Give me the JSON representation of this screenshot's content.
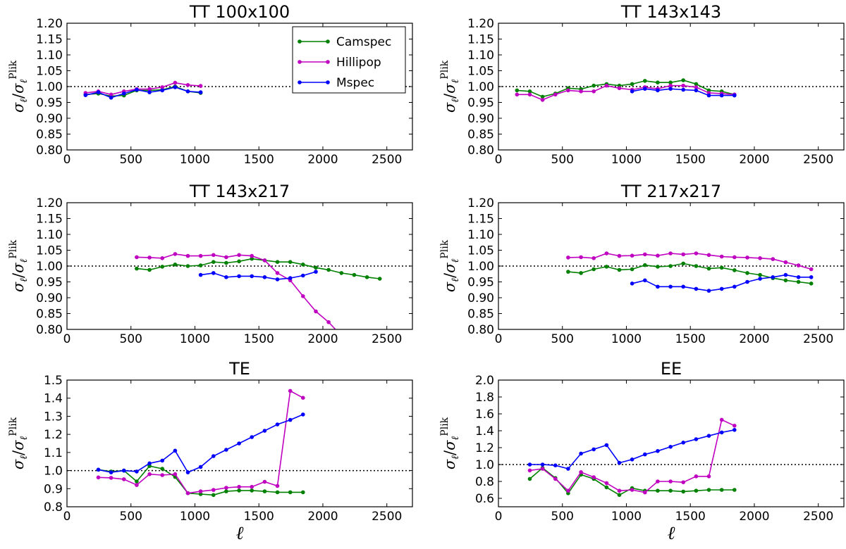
{
  "chart_data": [
    {
      "type": "line",
      "title": "TT 100x100",
      "xlabel": "",
      "ylabel": "σℓ/σℓPlik",
      "ylabel_main": "σ",
      "ylabel_sub": "ℓ",
      "ylabel_sep": "/",
      "ylabel_sup": "Plik",
      "xlim": [
        0,
        2700
      ],
      "ylim": [
        0.8,
        1.2
      ],
      "xticks": [
        0,
        500,
        1000,
        1500,
        2000,
        2500
      ],
      "xticklabels": [
        "0",
        "500",
        "1000",
        "1500",
        "2000",
        "2500"
      ],
      "yticks": [
        0.8,
        0.85,
        0.9,
        0.95,
        1.0,
        1.05,
        1.1,
        1.15,
        1.2
      ],
      "yticklabels": [
        "0.80",
        "0.85",
        "0.90",
        "0.95",
        "1.00",
        "1.05",
        "1.10",
        "1.15",
        "1.20"
      ],
      "reference_line": 1.0,
      "legend": "top-right",
      "series": [
        {
          "name": "Camspec",
          "color": "#008000",
          "x": [
            145,
            245,
            345,
            445,
            545,
            645,
            745,
            845,
            945,
            1045
          ],
          "y": [
            0.975,
            0.978,
            0.97,
            0.972,
            0.988,
            0.988,
            0.99,
            1.0,
            0.985,
            0.98
          ]
        },
        {
          "name": "Hillipop",
          "color": "#c000c0",
          "x": [
            145,
            245,
            345,
            445,
            545,
            645,
            745,
            845,
            945,
            1045
          ],
          "y": [
            0.98,
            0.985,
            0.975,
            0.985,
            0.992,
            0.992,
            0.998,
            1.012,
            1.005,
            1.002
          ]
        },
        {
          "name": "Mspec",
          "color": "#0000ff",
          "x": [
            145,
            245,
            345,
            445,
            545,
            645,
            745,
            845,
            945,
            1045
          ],
          "y": [
            0.973,
            0.982,
            0.965,
            0.978,
            0.99,
            0.982,
            0.988,
            0.998,
            0.985,
            0.982
          ]
        }
      ]
    },
    {
      "type": "line",
      "title": "TT 143x143",
      "xlabel": "",
      "ylabel": "σℓ/σℓPlik",
      "ylabel_main": "σ",
      "ylabel_sub": "ℓ",
      "ylabel_sep": "/",
      "ylabel_sup": "Plik",
      "xlim": [
        0,
        2700
      ],
      "ylim": [
        0.8,
        1.2
      ],
      "xticks": [
        0,
        500,
        1000,
        1500,
        2000,
        2500
      ],
      "xticklabels": [
        "0",
        "500",
        "1000",
        "1500",
        "2000",
        "2500"
      ],
      "yticks": [
        0.8,
        0.85,
        0.9,
        0.95,
        1.0,
        1.05,
        1.1,
        1.15,
        1.2
      ],
      "yticklabels": [
        "0.80",
        "0.85",
        "0.90",
        "0.95",
        "1.00",
        "1.05",
        "1.10",
        "1.15",
        "1.20"
      ],
      "reference_line": 1.0,
      "series": [
        {
          "name": "Camspec",
          "color": "#008000",
          "x": [
            145,
            245,
            345,
            445,
            545,
            645,
            745,
            845,
            945,
            1045,
            1145,
            1245,
            1345,
            1445,
            1545,
            1645,
            1745,
            1845
          ],
          "y": [
            0.988,
            0.985,
            0.968,
            0.978,
            0.995,
            0.992,
            1.003,
            1.008,
            1.003,
            1.008,
            1.018,
            1.013,
            1.013,
            1.02,
            1.008,
            0.988,
            0.985,
            0.975
          ]
        },
        {
          "name": "Hillipop",
          "color": "#c000c0",
          "x": [
            145,
            245,
            345,
            445,
            545,
            645,
            745,
            845,
            945,
            1045,
            1145,
            1245,
            1345,
            1445,
            1545,
            1645,
            1745,
            1845
          ],
          "y": [
            0.975,
            0.975,
            0.958,
            0.975,
            0.988,
            0.985,
            0.985,
            1.003,
            0.995,
            0.99,
            0.998,
            0.993,
            1.003,
            1.003,
            0.998,
            0.98,
            0.978,
            0.975
          ]
        },
        {
          "name": "Mspec",
          "color": "#0000ff",
          "x": [
            1045,
            1145,
            1245,
            1345,
            1445,
            1545,
            1645,
            1745,
            1845
          ],
          "y": [
            0.985,
            0.993,
            0.988,
            0.993,
            0.99,
            0.988,
            0.972,
            0.972,
            0.972
          ]
        }
      ]
    },
    {
      "type": "line",
      "title": "TT 143x217",
      "xlabel": "",
      "ylabel": "σℓ/σℓPlik",
      "ylabel_main": "σ",
      "ylabel_sub": "ℓ",
      "ylabel_sep": "/",
      "ylabel_sup": "Plik",
      "xlim": [
        0,
        2700
      ],
      "ylim": [
        0.8,
        1.2
      ],
      "xticks": [
        0,
        500,
        1000,
        1500,
        2000,
        2500
      ],
      "xticklabels": [
        "0",
        "500",
        "1000",
        "1500",
        "2000",
        "2500"
      ],
      "yticks": [
        0.8,
        0.85,
        0.9,
        0.95,
        1.0,
        1.05,
        1.1,
        1.15,
        1.2
      ],
      "yticklabels": [
        "0.80",
        "0.85",
        "0.90",
        "0.95",
        "1.00",
        "1.05",
        "1.10",
        "1.15",
        "1.20"
      ],
      "reference_line": 1.0,
      "series": [
        {
          "name": "Camspec",
          "color": "#008000",
          "x": [
            545,
            645,
            745,
            845,
            945,
            1045,
            1145,
            1245,
            1345,
            1445,
            1545,
            1645,
            1745,
            1845,
            1945,
            2045,
            2145,
            2245,
            2345,
            2445
          ],
          "y": [
            0.992,
            0.988,
            0.998,
            1.005,
            1.0,
            1.002,
            1.013,
            1.01,
            1.015,
            1.023,
            1.018,
            1.013,
            1.013,
            1.005,
            0.995,
            0.988,
            0.978,
            0.972,
            0.965,
            0.96
          ]
        },
        {
          "name": "Hillipop",
          "color": "#c000c0",
          "x": [
            545,
            645,
            745,
            845,
            945,
            1045,
            1145,
            1245,
            1345,
            1445,
            1545,
            1645,
            1745,
            1845,
            1945,
            2045,
            2145
          ],
          "y": [
            1.028,
            1.027,
            1.025,
            1.038,
            1.032,
            1.032,
            1.035,
            1.028,
            1.035,
            1.032,
            1.018,
            0.978,
            0.955,
            0.905,
            0.857,
            0.823,
            0.78
          ]
        },
        {
          "name": "Mspec",
          "color": "#0000ff",
          "x": [
            1045,
            1145,
            1245,
            1345,
            1445,
            1545,
            1645,
            1745,
            1845,
            1945
          ],
          "y": [
            0.972,
            0.978,
            0.965,
            0.968,
            0.968,
            0.965,
            0.958,
            0.962,
            0.97,
            0.982
          ]
        }
      ]
    },
    {
      "type": "line",
      "title": "TT 217x217",
      "xlabel": "",
      "ylabel": "σℓ/σℓPlik",
      "ylabel_main": "σ",
      "ylabel_sub": "ℓ",
      "ylabel_sep": "/",
      "ylabel_sup": "Plik",
      "xlim": [
        0,
        2700
      ],
      "ylim": [
        0.8,
        1.2
      ],
      "xticks": [
        0,
        500,
        1000,
        1500,
        2000,
        2500
      ],
      "xticklabels": [
        "0",
        "500",
        "1000",
        "1500",
        "2000",
        "2500"
      ],
      "yticks": [
        0.8,
        0.85,
        0.9,
        0.95,
        1.0,
        1.05,
        1.1,
        1.15,
        1.2
      ],
      "yticklabels": [
        "0.80",
        "0.85",
        "0.90",
        "0.95",
        "1.00",
        "1.05",
        "1.10",
        "1.15",
        "1.20"
      ],
      "reference_line": 1.0,
      "series": [
        {
          "name": "Camspec",
          "color": "#008000",
          "x": [
            545,
            645,
            745,
            845,
            945,
            1045,
            1145,
            1245,
            1345,
            1445,
            1545,
            1645,
            1745,
            1845,
            1945,
            2045,
            2145,
            2245,
            2345,
            2445
          ],
          "y": [
            0.982,
            0.978,
            0.99,
            0.998,
            0.988,
            0.99,
            1.003,
            0.998,
            1.0,
            1.008,
            1.0,
            0.992,
            0.995,
            0.987,
            0.978,
            0.972,
            0.962,
            0.955,
            0.95,
            0.945
          ]
        },
        {
          "name": "Hillipop",
          "color": "#c000c0",
          "x": [
            545,
            645,
            745,
            845,
            945,
            1045,
            1145,
            1245,
            1345,
            1445,
            1545,
            1645,
            1745,
            1845,
            1945,
            2045,
            2145,
            2245,
            2345,
            2445
          ],
          "y": [
            1.027,
            1.028,
            1.025,
            1.04,
            1.032,
            1.033,
            1.037,
            1.033,
            1.04,
            1.037,
            1.04,
            1.035,
            1.03,
            1.028,
            1.027,
            1.025,
            1.022,
            1.012,
            1.002,
            0.99
          ]
        },
        {
          "name": "Mspec",
          "color": "#0000ff",
          "x": [
            1045,
            1145,
            1245,
            1345,
            1445,
            1545,
            1645,
            1745,
            1845,
            1945,
            2045,
            2145,
            2245,
            2345,
            2445
          ],
          "y": [
            0.945,
            0.955,
            0.935,
            0.935,
            0.935,
            0.928,
            0.922,
            0.928,
            0.935,
            0.95,
            0.96,
            0.965,
            0.972,
            0.965,
            0.965
          ]
        }
      ]
    },
    {
      "type": "line",
      "title": "TE",
      "xlabel": "ℓ",
      "ylabel": "σℓ/σℓPlik",
      "ylabel_main": "σ",
      "ylabel_sub": "ℓ",
      "ylabel_sep": "/",
      "ylabel_sup": "Plik",
      "xlim": [
        0,
        2700
      ],
      "ylim": [
        0.8,
        1.5
      ],
      "xticks": [
        0,
        500,
        1000,
        1500,
        2000,
        2500
      ],
      "xticklabels": [
        "0",
        "500",
        "1000",
        "1500",
        "2000",
        "2500"
      ],
      "yticks": [
        0.8,
        0.9,
        1.0,
        1.1,
        1.2,
        1.3,
        1.4,
        1.5
      ],
      "yticklabels": [
        "0.8",
        "0.9",
        "1.0",
        "1.1",
        "1.2",
        "1.3",
        "1.4",
        "1.5"
      ],
      "reference_line": 1.0,
      "series": [
        {
          "name": "Camspec",
          "color": "#008000",
          "x": [
            245,
            345,
            445,
            545,
            645,
            745,
            845,
            945,
            1045,
            1145,
            1245,
            1345,
            1445,
            1545,
            1645,
            1745,
            1845
          ],
          "y": [
            1.005,
            0.995,
            1.0,
            0.94,
            1.025,
            1.01,
            0.965,
            0.875,
            0.87,
            0.865,
            0.885,
            0.89,
            0.89,
            0.885,
            0.88,
            0.88,
            0.88
          ]
        },
        {
          "name": "Hillipop",
          "color": "#c000c0",
          "x": [
            245,
            345,
            445,
            545,
            645,
            745,
            845,
            945,
            1045,
            1145,
            1245,
            1345,
            1445,
            1545,
            1645,
            1745,
            1845
          ],
          "y": [
            0.962,
            0.96,
            0.952,
            0.92,
            0.98,
            0.975,
            0.98,
            0.875,
            0.885,
            0.893,
            0.905,
            0.91,
            0.91,
            0.938,
            0.915,
            1.44,
            1.402
          ]
        },
        {
          "name": "Mspec",
          "color": "#0000ff",
          "x": [
            245,
            345,
            445,
            545,
            645,
            745,
            845,
            945,
            1045,
            1145,
            1245,
            1345,
            1445,
            1545,
            1645,
            1745,
            1845
          ],
          "y": [
            1.005,
            0.99,
            1.0,
            0.995,
            1.04,
            1.055,
            1.11,
            0.99,
            1.02,
            1.08,
            1.115,
            1.15,
            1.185,
            1.22,
            1.255,
            1.28,
            1.31
          ]
        }
      ]
    },
    {
      "type": "line",
      "title": "EE",
      "xlabel": "ℓ",
      "ylabel": "σℓ/σℓPlik",
      "ylabel_main": "σ",
      "ylabel_sub": "ℓ",
      "ylabel_sep": "/",
      "ylabel_sup": "Plik",
      "xlim": [
        0,
        2700
      ],
      "ylim": [
        0.5,
        2.0
      ],
      "xticks": [
        0,
        500,
        1000,
        1500,
        2000,
        2500
      ],
      "xticklabels": [
        "0",
        "500",
        "1000",
        "1500",
        "2000",
        "2500"
      ],
      "yticks": [
        0.6,
        0.8,
        1.0,
        1.2,
        1.4,
        1.6,
        1.8,
        2.0
      ],
      "yticklabels": [
        "0.6",
        "0.8",
        "1.0",
        "1.2",
        "1.4",
        "1.6",
        "1.8",
        "2.0"
      ],
      "reference_line": 1.0,
      "series": [
        {
          "name": "Camspec",
          "color": "#008000",
          "x": [
            245,
            345,
            445,
            545,
            645,
            745,
            845,
            945,
            1045,
            1145,
            1245,
            1345,
            1445,
            1545,
            1645,
            1745,
            1845
          ],
          "y": [
            0.83,
            0.96,
            0.84,
            0.66,
            0.88,
            0.83,
            0.73,
            0.64,
            0.72,
            0.69,
            0.69,
            0.69,
            0.68,
            0.69,
            0.7,
            0.7,
            0.7
          ]
        },
        {
          "name": "Hillipop",
          "color": "#c000c0",
          "x": [
            245,
            345,
            445,
            545,
            645,
            745,
            845,
            945,
            1045,
            1145,
            1245,
            1345,
            1445,
            1545,
            1645,
            1745,
            1845
          ],
          "y": [
            0.93,
            0.95,
            0.83,
            0.69,
            0.91,
            0.85,
            0.78,
            0.69,
            0.7,
            0.67,
            0.8,
            0.8,
            0.79,
            0.86,
            0.86,
            1.53,
            1.46
          ]
        },
        {
          "name": "Mspec",
          "color": "#0000ff",
          "x": [
            245,
            345,
            445,
            545,
            645,
            745,
            845,
            945,
            1045,
            1145,
            1245,
            1345,
            1445,
            1545,
            1645,
            1745,
            1845
          ],
          "y": [
            1.0,
            1.0,
            0.99,
            0.95,
            1.13,
            1.18,
            1.23,
            1.02,
            1.06,
            1.12,
            1.16,
            1.21,
            1.26,
            1.3,
            1.34,
            1.38,
            1.41
          ]
        }
      ]
    }
  ]
}
